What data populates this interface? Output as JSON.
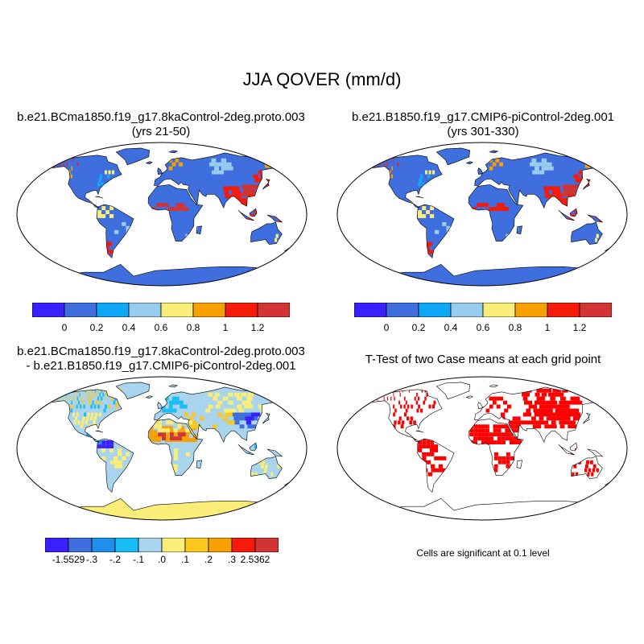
{
  "main_title": "JJA QOVER (mm/d)",
  "panels": [
    {
      "title_lines": [
        "b.e21.BCma1850.f19_g17.8kaControl-2deg.proto.003",
        "(yrs 21-50)"
      ],
      "colorbar": {
        "colors": [
          "#3a1fff",
          "#3f6fdf",
          "#0fa7f7",
          "#98ccee",
          "#fbee78",
          "#f7a000",
          "#f51a0a",
          "#d23333"
        ],
        "tick_labels": [
          "0",
          "0.2",
          "0.4",
          "0.6",
          "0.8",
          "1",
          "1.2"
        ]
      }
    },
    {
      "title_lines": [
        "b.e21.B1850.f19_g17.CMIP6-piControl-2deg.001",
        "(yrs 301-330)"
      ],
      "colorbar": {
        "colors": [
          "#3a1fff",
          "#3f6fdf",
          "#0fa7f7",
          "#98ccee",
          "#fbee78",
          "#f7a000",
          "#f51a0a",
          "#d23333"
        ],
        "tick_labels": [
          "0",
          "0.2",
          "0.4",
          "0.6",
          "0.8",
          "1",
          "1.2"
        ]
      }
    },
    {
      "title_lines": [
        "b.e21.BCma1850.f19_g17.8kaControl-2deg.proto.003",
        "- b.e21.B1850.f19_g17.CMIP6-piControl-2deg.001"
      ],
      "colorbar": {
        "colors": [
          "#3a1fff",
          "#3f6fdf",
          "#1f8fef",
          "#19bdf5",
          "#a8d4ee",
          "#fbee78",
          "#fcc81e",
          "#f7a000",
          "#f51a0a",
          "#d23333"
        ],
        "tick_labels": [
          "-1.5529",
          "-.3",
          "-.2",
          "-.1",
          ".0",
          ".1",
          ".2",
          ".3",
          "2.5362"
        ]
      }
    },
    {
      "title_lines": [
        "T-Test of two Case means at each grid point"
      ],
      "note": "Cells are significant at 0.1 level"
    }
  ],
  "colors": {
    "ocean": "#ffffff",
    "coast": "#000000",
    "significant": "#ff0000"
  }
}
